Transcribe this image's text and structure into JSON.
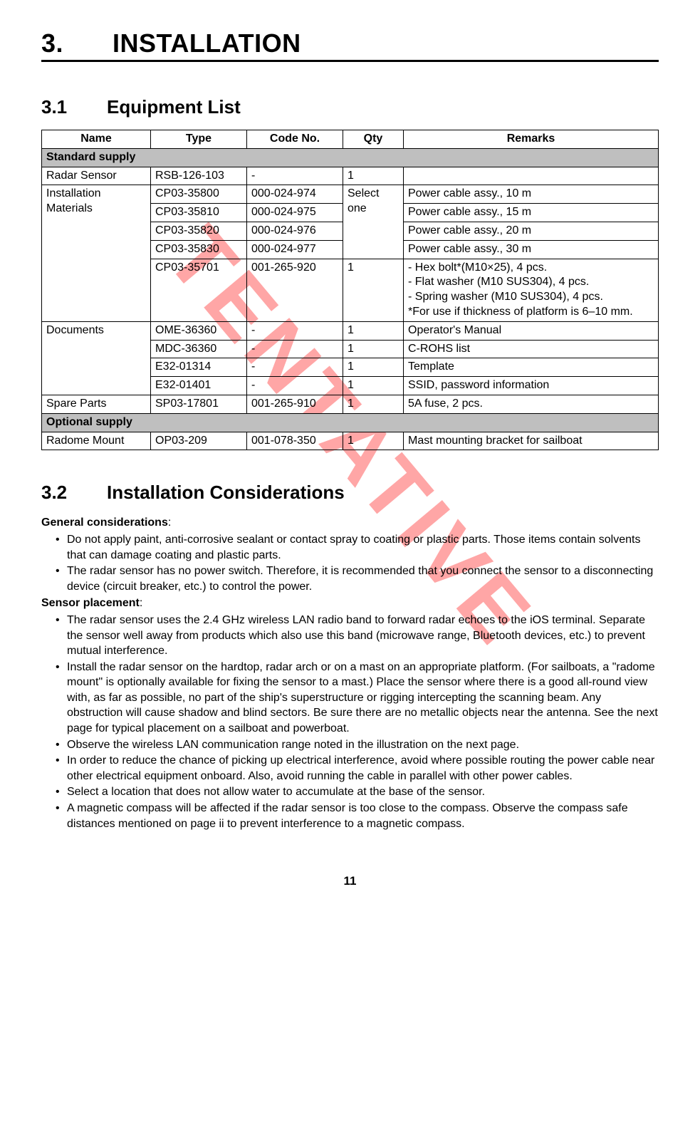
{
  "watermark": "TENTATIVE",
  "pageNumber": "11",
  "chapter": {
    "number": "3.",
    "title": "INSTALLATION"
  },
  "section31": {
    "number": "3.1",
    "title": "Equipment List"
  },
  "section32": {
    "number": "3.2",
    "title": "Installation Considerations"
  },
  "table": {
    "headers": {
      "name": "Name",
      "type": "Type",
      "code": "Code No.",
      "qty": "Qty",
      "remarks": "Remarks"
    },
    "group1": "Standard supply",
    "group2": "Optional supply",
    "radar": {
      "name": "Radar Sensor",
      "type": "RSB-126-103",
      "code": "-",
      "qty": "1",
      "remarks": ""
    },
    "install": {
      "name": "Installation Materials",
      "qtySelect": "Select one",
      "r1": {
        "type": "CP03-35800",
        "code": "000-024-974",
        "remarks": "Power cable assy., 10 m"
      },
      "r2": {
        "type": "CP03-35810",
        "code": "000-024-975",
        "remarks": "Power cable assy., 15 m"
      },
      "r3": {
        "type": "CP03-35820",
        "code": "000-024-976",
        "remarks": "Power cable assy., 20 m"
      },
      "r4": {
        "type": "CP03-35830",
        "code": "000-024-977",
        "remarks": "Power cable assy., 30 m"
      },
      "r5": {
        "type": "CP03-35701",
        "code": "001-265-920",
        "qty": "1",
        "remarks": "- Hex bolt*(M10×25), 4 pcs.\n- Flat washer (M10 SUS304), 4 pcs.\n- Spring washer (M10 SUS304), 4 pcs.\n*For use if thickness of platform is 6–10 mm."
      }
    },
    "docs": {
      "name": "Documents",
      "r1": {
        "type": "OME-36360",
        "code": "-",
        "qty": "1",
        "remarks": "Operator's Manual"
      },
      "r2": {
        "type": "MDC-36360",
        "code": "-",
        "qty": "1",
        "remarks": "C-ROHS list"
      },
      "r3": {
        "type": "E32-01314",
        "code": "-",
        "qty": "1",
        "remarks": "Template"
      },
      "r4": {
        "type": "E32-01401",
        "code": "-",
        "qty": "1",
        "remarks": "SSID, password information"
      }
    },
    "spare": {
      "name": "Spare Parts",
      "type": "SP03-17801",
      "code": "001-265-910",
      "qty": "1",
      "remarks": "5A fuse, 2 pcs."
    },
    "radome": {
      "name": "Radome Mount",
      "type": "OP03-209",
      "code": "001-078-350",
      "qty": "1",
      "remarks": "Mast mounting bracket for sailboat"
    }
  },
  "considerations": {
    "generalHeading": "General considerations",
    "general": [
      "Do not apply paint, anti-corrosive sealant or contact spray to coating or plastic parts. Those items contain solvents that can damage coating and plastic parts.",
      "The radar sensor has no power switch. Therefore, it is recommended that you connect the sensor to a disconnecting device (circuit breaker, etc.) to control the power."
    ],
    "sensorHeading": "Sensor placement",
    "sensor": [
      "The radar sensor uses the 2.4 GHz wireless LAN radio band to forward radar echoes to the iOS terminal. Separate the sensor well away from products which also use this band (microwave range, Bluetooth devices, etc.) to prevent mutual interference.",
      " Install the radar sensor on the hardtop, radar arch or on a mast on an appropriate platform. (For sailboats, a \"radome mount\" is optionally available for fixing the sensor to a mast.) Place the sensor where there is a good all-round view with, as far as possible, no part of the ship's superstructure or rigging intercepting the scanning beam. Any obstruction will cause shadow and blind sectors. Be sure there are no metallic objects near the antenna. See the next page for typical placement on a sailboat and powerboat.",
      "Observe the wireless LAN communication range noted in the illustration on the next page.",
      "In order to reduce the chance of picking up electrical interference, avoid where possible routing the power cable near other electrical equipment onboard. Also, avoid running the cable in parallel with other power cables.",
      "Select a location that does not allow water to accumulate at the base of the sensor.",
      "A magnetic compass will be affected if the radar sensor is too close to the compass. Observe the compass safe distances mentioned on page ii to prevent interference to a magnetic compass."
    ]
  }
}
